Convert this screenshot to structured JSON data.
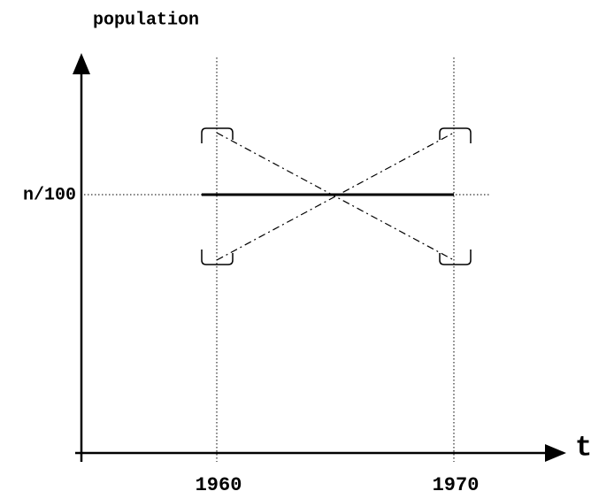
{
  "axis_labels": {
    "y": "population",
    "x": "t"
  },
  "level_label": "n/100",
  "years": [
    "1960",
    "1970"
  ]
}
